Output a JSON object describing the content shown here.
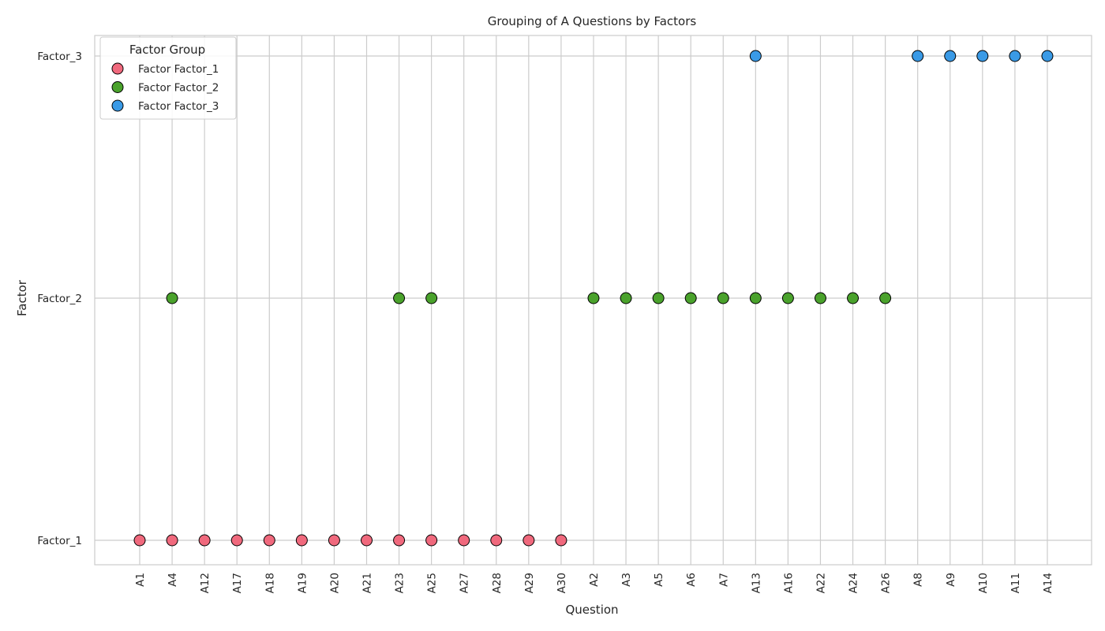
{
  "chart_data": {
    "type": "scatter",
    "title": "Grouping of A Questions by Factors",
    "xlabel": "Question",
    "ylabel": "Factor",
    "categories": [
      "A1",
      "A4",
      "A12",
      "A17",
      "A18",
      "A19",
      "A20",
      "A21",
      "A23",
      "A25",
      "A27",
      "A28",
      "A29",
      "A30",
      "A2",
      "A3",
      "A5",
      "A6",
      "A7",
      "A13",
      "A16",
      "A22",
      "A24",
      "A26",
      "A8",
      "A9",
      "A10",
      "A11",
      "A14"
    ],
    "y_categories": [
      "Factor_1",
      "Factor_2",
      "Factor_3"
    ],
    "grid": true,
    "legend": {
      "title": "Factor Group",
      "placement": "top-left"
    },
    "series": [
      {
        "name": "Factor Factor_1",
        "color": "#f0697d",
        "y": "Factor_1",
        "x": [
          "A1",
          "A4",
          "A12",
          "A17",
          "A18",
          "A19",
          "A20",
          "A21",
          "A23",
          "A25",
          "A27",
          "A28",
          "A29",
          "A30"
        ]
      },
      {
        "name": "Factor Factor_2",
        "color": "#4aa22c",
        "y": "Factor_2",
        "x": [
          "A4",
          "A23",
          "A25",
          "A2",
          "A3",
          "A5",
          "A6",
          "A7",
          "A13",
          "A16",
          "A22",
          "A24",
          "A26"
        ]
      },
      {
        "name": "Factor Factor_3",
        "color": "#3a9ae6",
        "y": "Factor_3",
        "x": [
          "A13",
          "A8",
          "A9",
          "A10",
          "A11",
          "A14"
        ]
      }
    ]
  }
}
